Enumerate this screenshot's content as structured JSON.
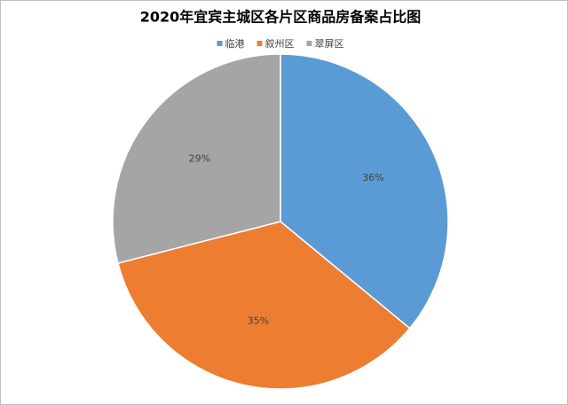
{
  "chart_data": {
    "type": "pie",
    "title": "2020年宜宾主城区各片区商品房备案占比图",
    "categories": [
      "临港",
      "叙州区",
      "翠屏区"
    ],
    "values": [
      36,
      35,
      29
    ],
    "value_labels": [
      "36%",
      "35%",
      "29%"
    ],
    "colors": [
      "#5b9bd5",
      "#ed7d31",
      "#a5a5a5"
    ],
    "legend": "top"
  }
}
